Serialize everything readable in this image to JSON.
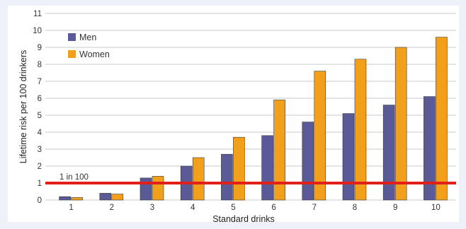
{
  "chart_data": {
    "type": "bar",
    "title": "",
    "xlabel": "Standard drinks",
    "ylabel": "Lifetime risk per 100 drinkers",
    "categories": [
      "1",
      "2",
      "3",
      "4",
      "5",
      "6",
      "7",
      "8",
      "9",
      "10"
    ],
    "series": [
      {
        "name": "Men",
        "color": "#5b5a98",
        "values": [
          0.2,
          0.4,
          1.3,
          2.0,
          2.7,
          3.8,
          4.6,
          5.1,
          5.6,
          6.1
        ]
      },
      {
        "name": "Women",
        "color": "#f2a01c",
        "values": [
          0.15,
          0.35,
          1.4,
          2.5,
          3.7,
          5.9,
          7.6,
          8.3,
          9.0,
          9.6
        ]
      }
    ],
    "ylim": [
      0,
      11
    ],
    "yticks": [
      "0",
      "1",
      "2",
      "3",
      "4",
      "5",
      "6",
      "7",
      "8",
      "9",
      "10",
      "11"
    ],
    "grid": true,
    "legend_position": "top-left",
    "reference_line": {
      "label": "1 in 100",
      "value": 1,
      "color": "#e0201b"
    }
  }
}
